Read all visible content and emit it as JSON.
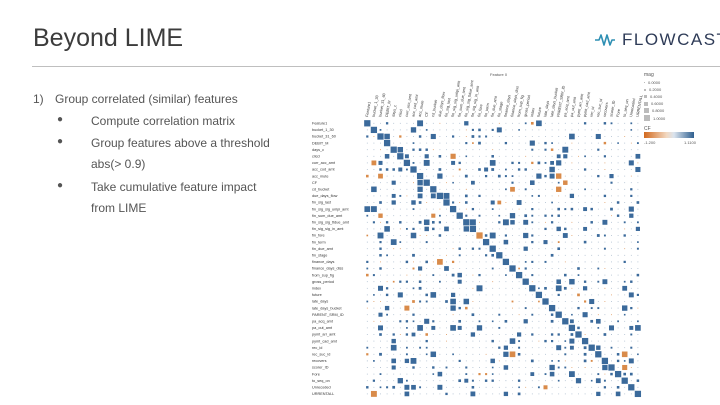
{
  "slide": {
    "title": "Beyond LIME",
    "logo_text": "FLOWCAST",
    "logo_icon": "flowcast-wave-icon"
  },
  "content": {
    "item1_number": "1)",
    "item1_text": "Group correlated (similar) features",
    "bullets": [
      {
        "symbol": "●",
        "line1": "Compute correlation matrix",
        "line2": ""
      },
      {
        "symbol": "●",
        "line1": "Group features above a threshold",
        "line2": "abs(> 0.9)"
      },
      {
        "symbol": "●",
        "line1": "Take cumulative feature impact",
        "line2": "from LIME"
      }
    ]
  },
  "matrix": {
    "top_label": "Feature 0",
    "row_labels": [
      "Feature1",
      "bucket_1_30",
      "bucket_31_60",
      "DEBIT_M",
      "days_c",
      "clicd",
      "curr_acc_amt",
      "acc_cod_amt",
      "acc_mute",
      "CF",
      "cd_bucket",
      "due_days_flow",
      "fin_sig_last",
      "fin_sig_sig_unlpi_amt",
      "fin_sum_due_amt",
      "fin_sig_sig_ttdue_amt",
      "fin_sig_sig_in_amt",
      "fin_fore",
      "fin_term",
      "fin_due_amt",
      "fin_stage",
      "finance_days",
      "finance_days_diss",
      "from_sup_fig",
      "gross_period",
      "index",
      "future",
      "late_days",
      "late_days_bucket",
      "PARENT_SRM_ID",
      "pa_acq_amt",
      "pa_out_amt",
      "pymt_arr_amt",
      "pymt_cad_amt",
      "rec_id",
      "rec_suc_id",
      "recovers",
      "scorer_ID",
      "Fore",
      "to_seq_on",
      "Unrecoded",
      "URRENTALL"
    ],
    "legend_title": "mag",
    "legend_values": [
      "0.0000",
      "0.2000",
      "0.4000",
      "0.6000",
      "0.8000",
      "1.0000"
    ],
    "colorbar_title": "CF",
    "colorbar_min": "-1.200",
    "colorbar_max": "1.1100"
  }
}
